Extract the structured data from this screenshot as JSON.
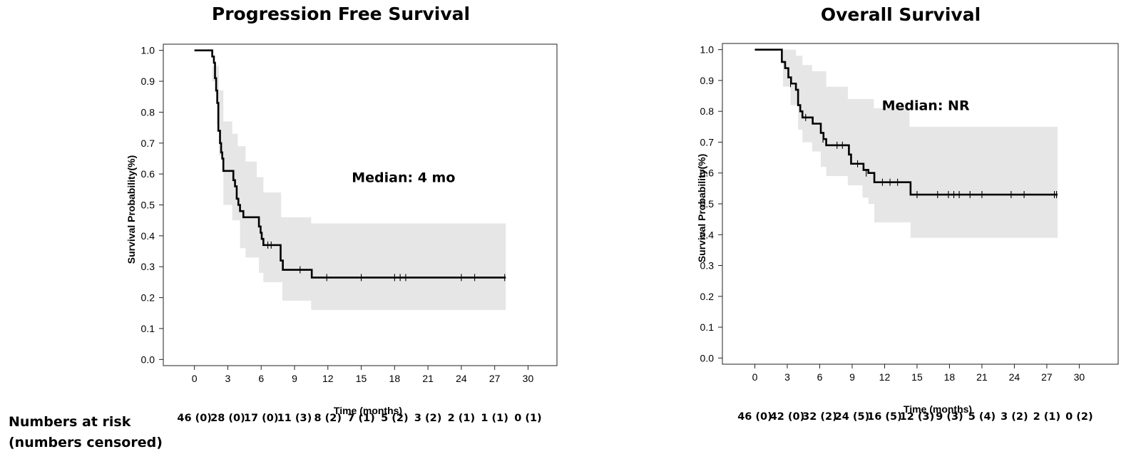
{
  "risk_table": {
    "label_line1": "Numbers at risk",
    "label_line2": "(numbers censored)"
  },
  "chart_data": [
    {
      "type": "line",
      "subtype": "kaplan-meier",
      "title": "Progression Free Survival",
      "xlabel": "Time (months)",
      "ylabel": "Survival Probability(%)",
      "xlim": [
        -2.8,
        32.6
      ],
      "ylim": [
        -0.02,
        1.02
      ],
      "x_ticks": [
        0,
        3,
        6,
        9,
        12,
        15,
        18,
        21,
        24,
        27,
        30
      ],
      "y_ticks": [
        0.0,
        0.1,
        0.2,
        0.3,
        0.4,
        0.5,
        0.6,
        0.7,
        0.8,
        0.9,
        1.0
      ],
      "annotation": {
        "text": "Median: 4 mo",
        "x": 18.8,
        "y": 0.59
      },
      "color": "#000000",
      "band_color": "#e6e6e6",
      "series": [
        {
          "steps": [
            [
              0,
              1.0
            ],
            [
              1.4,
              1.0
            ],
            [
              1.6,
              0.98
            ],
            [
              1.75,
              0.96
            ],
            [
              1.85,
              0.91
            ],
            [
              1.95,
              0.87
            ],
            [
              2.05,
              0.83
            ],
            [
              2.15,
              0.74
            ],
            [
              2.3,
              0.7
            ],
            [
              2.4,
              0.67
            ],
            [
              2.5,
              0.65
            ],
            [
              2.6,
              0.61
            ],
            [
              3.4,
              0.61
            ],
            [
              3.5,
              0.58
            ],
            [
              3.65,
              0.56
            ],
            [
              3.8,
              0.52
            ],
            [
              3.95,
              0.5
            ],
            [
              4.1,
              0.48
            ],
            [
              4.4,
              0.46
            ],
            [
              5.7,
              0.46
            ],
            [
              5.8,
              0.43
            ],
            [
              5.95,
              0.41
            ],
            [
              6.05,
              0.39
            ],
            [
              6.2,
              0.37
            ],
            [
              7.65,
              0.37
            ],
            [
              7.75,
              0.32
            ],
            [
              7.95,
              0.29
            ],
            [
              10.45,
              0.29
            ],
            [
              10.55,
              0.265
            ],
            [
              28.0,
              0.265
            ]
          ],
          "censors": [
            [
              6.6,
              0.37
            ],
            [
              6.9,
              0.37
            ],
            [
              9.5,
              0.29
            ],
            [
              11.9,
              0.265
            ],
            [
              15.0,
              0.265
            ],
            [
              18.0,
              0.265
            ],
            [
              18.5,
              0.265
            ],
            [
              19.0,
              0.265
            ],
            [
              24.0,
              0.265
            ],
            [
              25.2,
              0.265
            ],
            [
              27.9,
              0.265
            ]
          ],
          "ci_upper": [
            [
              1.3,
              1.0
            ],
            [
              1.6,
              0.95
            ],
            [
              2.2,
              0.87
            ],
            [
              2.6,
              0.77
            ],
            [
              3.4,
              0.73
            ],
            [
              3.9,
              0.69
            ],
            [
              4.6,
              0.64
            ],
            [
              5.6,
              0.59
            ],
            [
              6.2,
              0.54
            ],
            [
              7.8,
              0.46
            ],
            [
              10.5,
              0.44
            ],
            [
              28.0,
              0.44
            ]
          ],
          "ci_lower": [
            [
              1.3,
              1.0
            ],
            [
              1.6,
              0.9
            ],
            [
              2.0,
              0.76
            ],
            [
              2.2,
              0.66
            ],
            [
              2.6,
              0.5
            ],
            [
              3.4,
              0.45
            ],
            [
              4.1,
              0.36
            ],
            [
              4.6,
              0.33
            ],
            [
              5.8,
              0.28
            ],
            [
              6.2,
              0.25
            ],
            [
              7.9,
              0.19
            ],
            [
              10.5,
              0.16
            ],
            [
              28.0,
              0.16
            ]
          ]
        }
      ],
      "risk_values": [
        "46 (0)",
        "28 (0)",
        "17 (0)",
        "11 (3)",
        "8 (2)",
        "7 (1)",
        "5 (2)",
        "3 (2)",
        "2 (1)",
        "1 (1)",
        "0 (1)"
      ]
    },
    {
      "type": "line",
      "subtype": "kaplan-meier",
      "title": "Overall Survival",
      "xlabel": "Time (months)",
      "ylabel": "Survival Probability(%)",
      "xlim": [
        -3.0,
        33.6
      ],
      "ylim": [
        -0.02,
        1.02
      ],
      "x_ticks": [
        0,
        3,
        6,
        9,
        12,
        15,
        18,
        21,
        24,
        27,
        30
      ],
      "y_ticks": [
        0.0,
        0.1,
        0.2,
        0.3,
        0.4,
        0.5,
        0.6,
        0.7,
        0.8,
        0.9,
        1.0
      ],
      "annotation": {
        "text": "Median: NR",
        "x": 15.8,
        "y": 0.82
      },
      "color": "#000000",
      "band_color": "#e6e6e6",
      "series": [
        {
          "steps": [
            [
              0,
              1.0
            ],
            [
              2.4,
              1.0
            ],
            [
              2.5,
              0.96
            ],
            [
              2.8,
              0.94
            ],
            [
              3.1,
              0.91
            ],
            [
              3.35,
              0.89
            ],
            [
              3.8,
              0.87
            ],
            [
              4.0,
              0.82
            ],
            [
              4.2,
              0.8
            ],
            [
              4.4,
              0.78
            ],
            [
              5.3,
              0.78
            ],
            [
              5.35,
              0.76
            ],
            [
              6.0,
              0.76
            ],
            [
              6.1,
              0.73
            ],
            [
              6.35,
              0.71
            ],
            [
              6.6,
              0.69
            ],
            [
              8.6,
              0.69
            ],
            [
              8.7,
              0.66
            ],
            [
              8.9,
              0.63
            ],
            [
              9.95,
              0.63
            ],
            [
              10.05,
              0.61
            ],
            [
              10.5,
              0.6
            ],
            [
              11.0,
              0.6
            ],
            [
              11.05,
              0.57
            ],
            [
              14.3,
              0.57
            ],
            [
              14.4,
              0.53
            ],
            [
              28.0,
              0.53
            ]
          ],
          "censors": [
            [
              3.3,
              0.89
            ],
            [
              4.7,
              0.78
            ],
            [
              6.3,
              0.71
            ],
            [
              7.6,
              0.69
            ],
            [
              8.1,
              0.69
            ],
            [
              9.5,
              0.63
            ],
            [
              10.3,
              0.6
            ],
            [
              11.8,
              0.57
            ],
            [
              12.5,
              0.57
            ],
            [
              13.2,
              0.57
            ],
            [
              15.0,
              0.53
            ],
            [
              16.9,
              0.53
            ],
            [
              17.9,
              0.53
            ],
            [
              18.4,
              0.53
            ],
            [
              18.9,
              0.53
            ],
            [
              19.9,
              0.53
            ],
            [
              21.0,
              0.53
            ],
            [
              23.7,
              0.53
            ],
            [
              24.9,
              0.53
            ],
            [
              27.7,
              0.53
            ],
            [
              27.9,
              0.53
            ]
          ],
          "ci_upper": [
            [
              2.4,
              1.0
            ],
            [
              3.8,
              0.98
            ],
            [
              4.4,
              0.95
            ],
            [
              5.3,
              0.93
            ],
            [
              6.6,
              0.88
            ],
            [
              8.6,
              0.84
            ],
            [
              11.0,
              0.81
            ],
            [
              14.3,
              0.75
            ],
            [
              28.0,
              0.72
            ]
          ],
          "ci_lower": [
            [
              2.4,
              1.0
            ],
            [
              2.6,
              0.88
            ],
            [
              3.3,
              0.82
            ],
            [
              4.0,
              0.74
            ],
            [
              4.4,
              0.7
            ],
            [
              5.3,
              0.67
            ],
            [
              6.1,
              0.62
            ],
            [
              6.6,
              0.59
            ],
            [
              8.6,
              0.56
            ],
            [
              9.95,
              0.52
            ],
            [
              10.5,
              0.5
            ],
            [
              11.05,
              0.44
            ],
            [
              14.4,
              0.39
            ],
            [
              28.0,
              0.39
            ]
          ]
        }
      ],
      "risk_values": [
        "46 (0)",
        "42 (0)",
        "32 (2)",
        "24 (5)",
        "16 (5)",
        "12 (3)",
        "9 (3)",
        "5 (4)",
        "3 (2)",
        "2 (1)",
        "0 (2)"
      ]
    }
  ]
}
